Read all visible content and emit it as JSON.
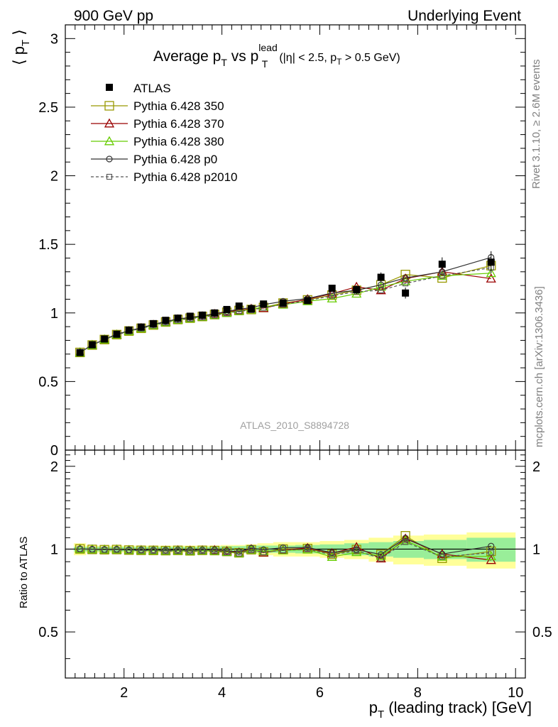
{
  "header": {
    "left": "900 GeV pp",
    "right": "Underlying Event"
  },
  "side_labels": {
    "rivet": "Rivet 3.1.10, ≥ 2.6M events",
    "mcplots": "mcplots.cern.ch [arXiv:1306.3436]"
  },
  "watermark": "ATLAS_2010_S8894728",
  "chart_data": {
    "type": "scatter",
    "title": {
      "main": "Average p",
      "sub1": "T",
      "vs": " vs p",
      "sup": "lead",
      "sub2": "T",
      "cuts": "(|η| < 2.5, p",
      "cuts_sub": "T",
      "cuts_end": " > 0.5 GeV)"
    },
    "xlabel": {
      "main": "p",
      "sub": "T",
      "rest": " (leading track) [GeV]"
    },
    "ylabel": {
      "main": "⟨ p",
      "sub": "T",
      "rest": " ⟩"
    },
    "ratio_ylabel": "Ratio to ATLAS",
    "xlim": [
      0.8,
      10.2
    ],
    "ylim": [
      0,
      3.1
    ],
    "ratio_ylim": [
      0.34,
      2.29
    ],
    "x_ticks": [
      "2",
      "4",
      "6",
      "8",
      "10"
    ],
    "y_ticks": [
      "0.5",
      "1",
      "1.5",
      "2",
      "2.5",
      "3"
    ],
    "y_ticks_partial": "0",
    "ratio_ticks": [
      "0.5",
      "1",
      "2"
    ],
    "legend_position": "top-left",
    "x": [
      1.1,
      1.35,
      1.6,
      1.85,
      2.1,
      2.35,
      2.6,
      2.85,
      3.1,
      3.35,
      3.6,
      3.85,
      4.1,
      4.35,
      4.6,
      4.85,
      5.25,
      5.75,
      6.25,
      6.75,
      7.25,
      7.75,
      8.5,
      9.5
    ],
    "data": {
      "name": "ATLAS",
      "values": [
        0.711,
        0.768,
        0.81,
        0.845,
        0.875,
        0.897,
        0.922,
        0.946,
        0.962,
        0.976,
        0.984,
        1.0,
        1.025,
        1.05,
        1.03,
        1.065,
        1.072,
        1.09,
        1.18,
        1.17,
        1.26,
        1.145,
        1.355,
        1.37
      ],
      "errors": [
        0.005,
        0.005,
        0.005,
        0.006,
        0.006,
        0.006,
        0.007,
        0.007,
        0.008,
        0.008,
        0.009,
        0.01,
        0.011,
        0.012,
        0.013,
        0.014,
        0.017,
        0.021,
        0.025,
        0.03,
        0.035,
        0.04,
        0.05,
        0.08
      ]
    },
    "band_inner": [
      0.02,
      0.02,
      0.02,
      0.02,
      0.02,
      0.02,
      0.02,
      0.02,
      0.02,
      0.02,
      0.02,
      0.02,
      0.025,
      0.025,
      0.03,
      0.03,
      0.03,
      0.035,
      0.04,
      0.05,
      0.06,
      0.07,
      0.08,
      0.1
    ],
    "band_outer": [
      0.05,
      0.03,
      0.03,
      0.03,
      0.03,
      0.03,
      0.03,
      0.03,
      0.03,
      0.03,
      0.03,
      0.03,
      0.035,
      0.035,
      0.04,
      0.05,
      0.06,
      0.06,
      0.07,
      0.08,
      0.1,
      0.12,
      0.13,
      0.15
    ],
    "series": [
      {
        "name": "Pythia 6.428 350",
        "color": "#999900",
        "marker": "square-open",
        "dash": "",
        "values": [
          0.712,
          0.766,
          0.806,
          0.842,
          0.868,
          0.888,
          0.912,
          0.934,
          0.952,
          0.962,
          0.974,
          0.988,
          1.005,
          1.018,
          1.025,
          1.04,
          1.072,
          1.095,
          1.13,
          1.165,
          1.205,
          1.28,
          1.255,
          1.345
        ]
      },
      {
        "name": "Pythia 6.428 370",
        "color": "#990000",
        "marker": "triangle-open",
        "dash": "",
        "values": [
          0.712,
          0.766,
          0.806,
          0.842,
          0.868,
          0.89,
          0.913,
          0.935,
          0.953,
          0.964,
          0.975,
          0.992,
          1.008,
          1.02,
          1.03,
          1.035,
          1.065,
          1.1,
          1.14,
          1.19,
          1.165,
          1.25,
          1.3,
          1.25
        ]
      },
      {
        "name": "Pythia 6.428 380",
        "color": "#66cc00",
        "marker": "triangle-open",
        "dash": "",
        "values": [
          0.711,
          0.766,
          0.806,
          0.842,
          0.867,
          0.888,
          0.911,
          0.932,
          0.95,
          0.96,
          0.972,
          0.985,
          1.0,
          1.015,
          1.025,
          1.045,
          1.06,
          1.085,
          1.105,
          1.14,
          1.19,
          1.23,
          1.27,
          1.29
        ]
      },
      {
        "name": "Pythia 6.428 p0",
        "color": "#333333",
        "marker": "circle-open",
        "dash": "",
        "values": [
          0.713,
          0.768,
          0.808,
          0.845,
          0.87,
          0.892,
          0.916,
          0.938,
          0.956,
          0.968,
          0.978,
          0.995,
          1.01,
          1.028,
          1.038,
          1.06,
          1.085,
          1.105,
          1.145,
          1.165,
          1.205,
          1.255,
          1.3,
          1.405
        ]
      },
      {
        "name": "Pythia 6.428 p2010",
        "color": "#555555",
        "marker": "square-small",
        "dash": "4,3",
        "values": [
          0.711,
          0.765,
          0.805,
          0.84,
          0.866,
          0.886,
          0.909,
          0.93,
          0.947,
          0.958,
          0.968,
          0.982,
          0.998,
          1.012,
          1.02,
          1.038,
          1.062,
          1.09,
          1.125,
          1.155,
          1.165,
          1.215,
          1.27,
          1.33
        ]
      }
    ]
  }
}
